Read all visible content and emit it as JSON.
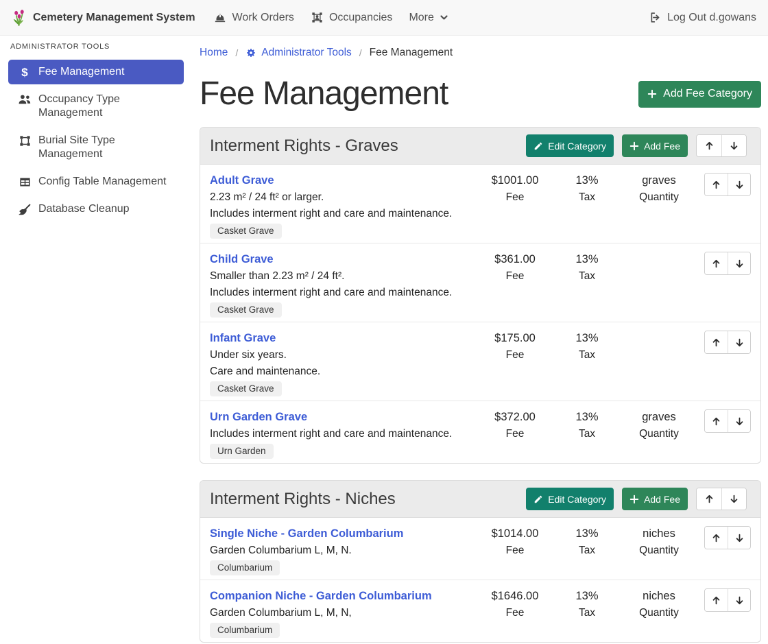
{
  "navbar": {
    "brand": "Cemetery Management System",
    "items": [
      {
        "label": "Work Orders",
        "icon": "hard-hat-icon"
      },
      {
        "label": "Occupancies",
        "icon": "occupancy-icon"
      },
      {
        "label": "More",
        "chevron": true
      }
    ],
    "logout_label": "Log Out d.gowans"
  },
  "sidebar": {
    "heading": "ADMINISTRATOR TOOLS",
    "items": [
      {
        "label": "Fee Management",
        "icon": "dollar-icon",
        "active": true
      },
      {
        "label": "Occupancy Type Management",
        "icon": "users-icon"
      },
      {
        "label": "Burial Site Type Management",
        "icon": "vector-square-icon"
      },
      {
        "label": "Config Table Management",
        "icon": "table-icon"
      },
      {
        "label": "Database Cleanup",
        "icon": "broom-icon"
      }
    ]
  },
  "breadcrumb": {
    "separator": "/",
    "items": [
      {
        "label": "Home",
        "link": true
      },
      {
        "label": "Administrator Tools",
        "link": true,
        "icon": "gear-icon"
      },
      {
        "label": "Fee Management",
        "link": false
      }
    ]
  },
  "page": {
    "title": "Fee Management",
    "add_category_label": "Add Fee Category"
  },
  "labels": {
    "fee": "Fee",
    "tax": "Tax",
    "quantity": "Quantity",
    "edit_category": "Edit Category",
    "add_fee": "Add Fee"
  },
  "categories": [
    {
      "title": "Interment Rights - Graves",
      "fees": [
        {
          "name": "Adult Grave",
          "fee": "$1001.00",
          "tax": "13%",
          "quantity": "graves",
          "descriptions": [
            "2.23 m² / 24 ft² or larger.",
            "Includes interment right and care and maintenance."
          ],
          "tag": "Casket Grave"
        },
        {
          "name": "Child Grave",
          "fee": "$361.00",
          "tax": "13%",
          "quantity": "",
          "descriptions": [
            "Smaller than 2.23 m² / 24 ft².",
            "Includes interment right and care and maintenance."
          ],
          "tag": "Casket Grave"
        },
        {
          "name": "Infant Grave",
          "fee": "$175.00",
          "tax": "13%",
          "quantity": "",
          "descriptions": [
            "Under six years.",
            "Care and maintenance."
          ],
          "tag": "Casket Grave"
        },
        {
          "name": "Urn Garden Grave",
          "fee": "$372.00",
          "tax": "13%",
          "quantity": "graves",
          "descriptions": [
            "Includes interment right and care and maintenance."
          ],
          "tag": "Urn Garden"
        }
      ]
    },
    {
      "title": "Interment Rights - Niches",
      "fees": [
        {
          "name": "Single Niche - Garden Columbarium",
          "fee": "$1014.00",
          "tax": "13%",
          "quantity": "niches",
          "descriptions": [
            "Garden Columbarium L, M, N."
          ],
          "tag": "Columbarium"
        },
        {
          "name": "Companion Niche - Garden Columbarium",
          "fee": "$1646.00",
          "tax": "13%",
          "quantity": "niches",
          "descriptions": [
            "Garden Columbarium L, M, N,"
          ],
          "tag": "Columbarium"
        }
      ]
    }
  ]
}
